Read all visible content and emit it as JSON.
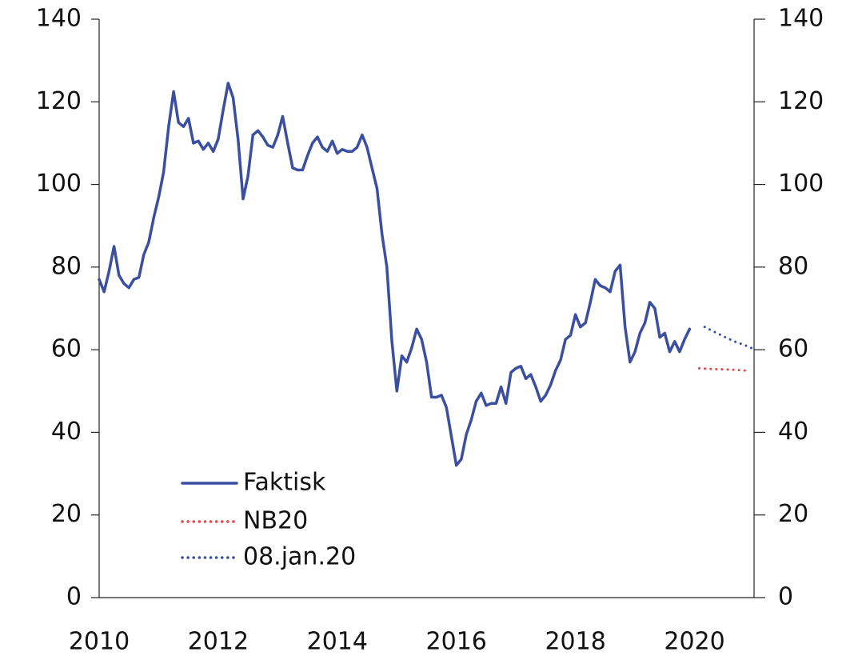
{
  "chart_data": {
    "type": "line",
    "xlim": [
      2010,
      2021
    ],
    "xticks": [
      2010,
      2012,
      2014,
      2016,
      2018,
      2020
    ],
    "ylim": [
      0,
      140
    ],
    "yticks": [
      0,
      20,
      40,
      60,
      80,
      100,
      120,
      140
    ],
    "y2lim": [
      0,
      140
    ],
    "y2ticks": [
      0,
      20,
      40,
      60,
      80,
      100,
      120,
      140
    ],
    "legend": "lower left",
    "series": [
      {
        "name": "Faktisk",
        "color": "#3a4fa0",
        "style": "solid",
        "x": [
          2010,
          2010.083,
          2010.167,
          2010.25,
          2010.333,
          2010.417,
          2010.5,
          2010.583,
          2010.667,
          2010.75,
          2010.833,
          2010.917,
          2011,
          2011.083,
          2011.167,
          2011.25,
          2011.333,
          2011.417,
          2011.5,
          2011.583,
          2011.667,
          2011.75,
          2011.833,
          2011.917,
          2012,
          2012.083,
          2012.167,
          2012.25,
          2012.333,
          2012.417,
          2012.5,
          2012.583,
          2012.667,
          2012.75,
          2012.833,
          2012.917,
          2013,
          2013.083,
          2013.167,
          2013.25,
          2013.333,
          2013.417,
          2013.5,
          2013.583,
          2013.667,
          2013.75,
          2013.833,
          2013.917,
          2014,
          2014.083,
          2014.167,
          2014.25,
          2014.333,
          2014.417,
          2014.5,
          2014.583,
          2014.667,
          2014.75,
          2014.833,
          2014.917,
          2015,
          2015.083,
          2015.167,
          2015.25,
          2015.333,
          2015.417,
          2015.5,
          2015.583,
          2015.667,
          2015.75,
          2015.833,
          2015.917,
          2016,
          2016.083,
          2016.167,
          2016.25,
          2016.333,
          2016.417,
          2016.5,
          2016.583,
          2016.667,
          2016.75,
          2016.833,
          2016.917,
          2017,
          2017.083,
          2017.167,
          2017.25,
          2017.333,
          2017.417,
          2017.5,
          2017.583,
          2017.667,
          2017.75,
          2017.833,
          2017.917,
          2018,
          2018.083,
          2018.167,
          2018.25,
          2018.333,
          2018.417,
          2018.5,
          2018.583,
          2018.667,
          2018.75,
          2018.833,
          2018.917,
          2019,
          2019.083,
          2019.167,
          2019.25,
          2019.333,
          2019.417,
          2019.5,
          2019.583,
          2019.667,
          2019.75,
          2019.833,
          2019.917
        ],
        "values": [
          77,
          74,
          79,
          85,
          78,
          76,
          75,
          77,
          77.5,
          83,
          86,
          92,
          97,
          103,
          114,
          122.5,
          115,
          114,
          116,
          110,
          110.5,
          108.5,
          110,
          108,
          111,
          118,
          124.5,
          121,
          111,
          96.5,
          102,
          112,
          113,
          111.5,
          109.5,
          109,
          112,
          116.5,
          110,
          104,
          103.5,
          103.5,
          107,
          110,
          111.5,
          109,
          108,
          110.5,
          107.5,
          108.5,
          108,
          108,
          109,
          112,
          109,
          104,
          99,
          88,
          80,
          62,
          50,
          58.5,
          57,
          60.5,
          65,
          62.5,
          57,
          48.5,
          48.5,
          49,
          46,
          39,
          32,
          33.5,
          39.5,
          43,
          47.5,
          49.5,
          46.5,
          47,
          47,
          51,
          47,
          54.5,
          55.5,
          56,
          53,
          54,
          51,
          47.5,
          49,
          51.5,
          55,
          57.5,
          62.5,
          63.5,
          68.5,
          65.5,
          66.5,
          71.5,
          77,
          75.5,
          75,
          74,
          79,
          80.5,
          65.5,
          57,
          59.5,
          64,
          66.5,
          71.5,
          70,
          63,
          64,
          59.5,
          62,
          59.5,
          62.5,
          65
        ]
      },
      {
        "name": "NB20",
        "color": "#e8474b",
        "style": "dotted",
        "x": [
          2020.08,
          2020.33,
          2020.58,
          2020.83,
          2020.92
        ],
        "values": [
          55.5,
          55.3,
          55.2,
          55,
          54.8
        ]
      },
      {
        "name": "08.jan.20",
        "color": "#3a4fa0",
        "style": "dotted",
        "x": [
          2020.17,
          2020.42,
          2020.67,
          2020.92,
          2021
        ],
        "values": [
          65.5,
          63.7,
          62,
          60.7,
          60
        ]
      }
    ]
  }
}
